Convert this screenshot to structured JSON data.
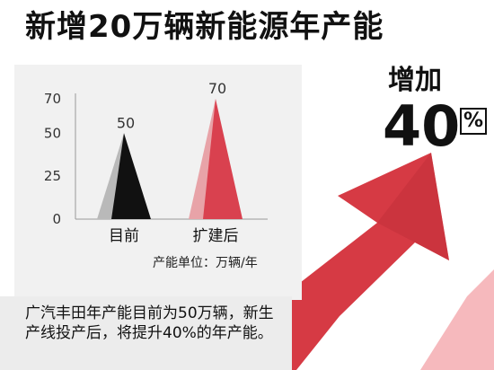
{
  "headline": "新增20万辆新能源年产能",
  "increase": {
    "label": "增加",
    "value": "40",
    "unit": "%"
  },
  "footnote": "广汽丰田年产能目前为50万辆，新生产线投产后，将提升40%的年产能。",
  "unit_label": "产能单位：万辆/年",
  "colors": {
    "accent_red": "#d9414f",
    "arrow_red": "#d63a44",
    "pink": "#e8a3a8",
    "black": "#111111",
    "gray": "#b9b9b9"
  },
  "chart_data": {
    "type": "bar",
    "mark": "triangle",
    "categories": [
      "目前",
      "扩建后"
    ],
    "values": [
      50,
      70
    ],
    "data_labels": [
      "50",
      "70"
    ],
    "yticks": [
      0,
      25,
      50,
      70
    ],
    "ylim": [
      0,
      70
    ],
    "title": "",
    "xlabel": "",
    "ylabel": "",
    "grid": false
  }
}
